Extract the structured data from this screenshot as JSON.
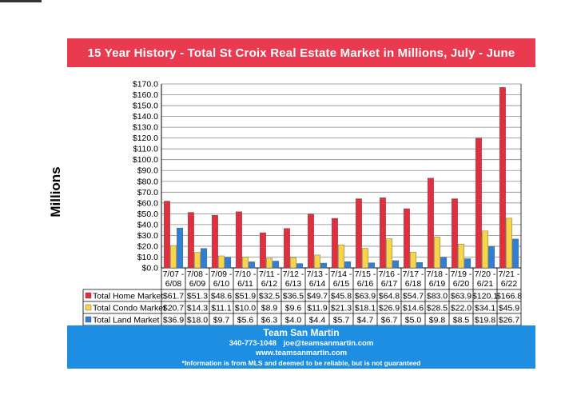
{
  "chart_data": {
    "type": "bar",
    "title": "15 Year History - Total St Croix Real Estate Market in Millions, July - June",
    "ylabel": "Millions",
    "xlabel": "",
    "ylim": [
      0,
      170
    ],
    "y_ticks": [
      "$0.0",
      "$10.0",
      "$20.0",
      "$30.0",
      "$40.0",
      "$50.0",
      "$60.0",
      "$70.0",
      "$80.0",
      "$90.0",
      "$100.0",
      "$110.0",
      "$120.0",
      "$130.0",
      "$140.0",
      "$150.0",
      "$160.0",
      "$170.0"
    ],
    "categories": [
      [
        "7/07 -",
        "6/08"
      ],
      [
        "7/08 -",
        "6/09"
      ],
      [
        "7/09 -",
        "6/10"
      ],
      [
        "7/10 -",
        "6/11"
      ],
      [
        "7/11 -",
        "6/12"
      ],
      [
        "7/12 -",
        "6/13"
      ],
      [
        "7/13 -",
        "6/14"
      ],
      [
        "7/14 -",
        "6/15"
      ],
      [
        "7/15 -",
        "6/16"
      ],
      [
        "7/16 -",
        "6/17"
      ],
      [
        "7/17 -",
        "6/18"
      ],
      [
        "7/18 -",
        "6/19"
      ],
      [
        "7/19 -",
        "6/20"
      ],
      [
        "7/20 -",
        "6/21"
      ],
      [
        "7/21 -",
        "6/22"
      ]
    ],
    "series": [
      {
        "name": "Total Home Market",
        "color": "#e0303f",
        "values": [
          61.7,
          51.3,
          48.6,
          51.9,
          32.5,
          36.5,
          49.7,
          45.8,
          63.9,
          64.8,
          54.7,
          83.0,
          63.9,
          120.1,
          166.8
        ],
        "labels": [
          "$61.7",
          "$51.3",
          "$48.6",
          "$51.9",
          "$32.5",
          "$36.5",
          "$49.7",
          "$45.8",
          "$63.9",
          "$64.8",
          "$54.7",
          "$83.0",
          "$63.9",
          "$120.1",
          "$166.8"
        ]
      },
      {
        "name": "Total Condo Market",
        "color": "#f6d54a",
        "values": [
          20.7,
          14.3,
          11.1,
          10.0,
          8.9,
          9.6,
          11.9,
          21.3,
          18.1,
          26.9,
          14.6,
          28.5,
          22.0,
          34.1,
          45.9
        ],
        "labels": [
          "$20.7",
          "$14.3",
          "$11.1",
          "$10.0",
          "$8.9",
          "$9.6",
          "$11.9",
          "$21.3",
          "$18.1",
          "$26.9",
          "$14.6",
          "$28.5",
          "$22.0",
          "$34.1",
          "$45.9"
        ]
      },
      {
        "name": "Total Land Market",
        "color": "#2f7fd6",
        "values": [
          36.9,
          18.0,
          9.7,
          5.6,
          6.3,
          4.0,
          4.4,
          5.7,
          4.7,
          6.7,
          5.0,
          9.8,
          8.5,
          19.8,
          26.7
        ],
        "labels": [
          "$36.9",
          "$18.0",
          "$9.7",
          "$5.6",
          "$6.3",
          "$4.0",
          "$4.4",
          "$5.7",
          "$4.7",
          "$6.7",
          "$5.0",
          "$9.8",
          "$8.5",
          "$19.8",
          "$26.7"
        ]
      }
    ],
    "grid": true,
    "legend": "data-table-left"
  },
  "footer": {
    "title": "Team San Martin",
    "phone": "340-773-1048",
    "email": "joe@teamsanmartin.com",
    "website": "www.teamsanmartin.com",
    "disclaimer": "*Information is from MLS and deemed to be reliable, but is not guaranteed"
  }
}
